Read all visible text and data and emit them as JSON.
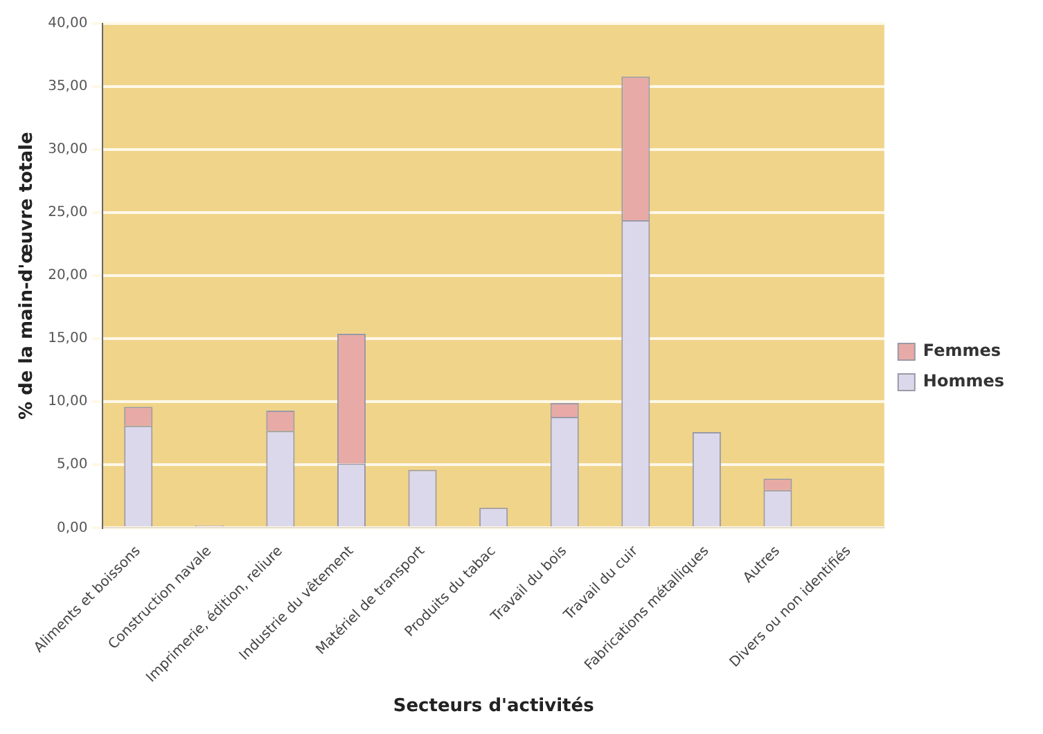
{
  "chart_data": {
    "type": "bar",
    "stacked": true,
    "xlabel": "Secteurs d'activités",
    "ylabel": "% de la main-d'œuvre totale",
    "categories": [
      "Aliments et boissons",
      "Construction navale",
      "Imprimerie, édition, reliure",
      "Industrie du vêtement",
      "Matériel de transport",
      "Produits du tabac",
      "Travail du bois",
      "Travail du cuir",
      "Fabrications métalliques",
      "Autres",
      "Divers ou non identifiés"
    ],
    "series": [
      {
        "name": "Hommes",
        "color": "#dcd8ec",
        "values": [
          8.1,
          0.2,
          7.7,
          5.1,
          4.6,
          1.6,
          8.8,
          24.4,
          7.6,
          3.0,
          0
        ]
      },
      {
        "name": "Femmes",
        "color": "#e8aaa6",
        "values": [
          1.5,
          0,
          1.6,
          10.3,
          0,
          0,
          1.1,
          11.4,
          0,
          0.9,
          0
        ]
      }
    ],
    "ylim": [
      0,
      40
    ],
    "yticks": [
      {
        "value": 0,
        "label": "0,00"
      },
      {
        "value": 5,
        "label": "5,00"
      },
      {
        "value": 10,
        "label": "10,00"
      },
      {
        "value": 15,
        "label": "15,00"
      },
      {
        "value": 20,
        "label": "20,00"
      },
      {
        "value": 25,
        "label": "25,00"
      },
      {
        "value": 30,
        "label": "30,00"
      },
      {
        "value": 35,
        "label": "35,00"
      },
      {
        "value": 40,
        "label": "40,00"
      }
    ],
    "grid": "y",
    "legend": "right"
  }
}
